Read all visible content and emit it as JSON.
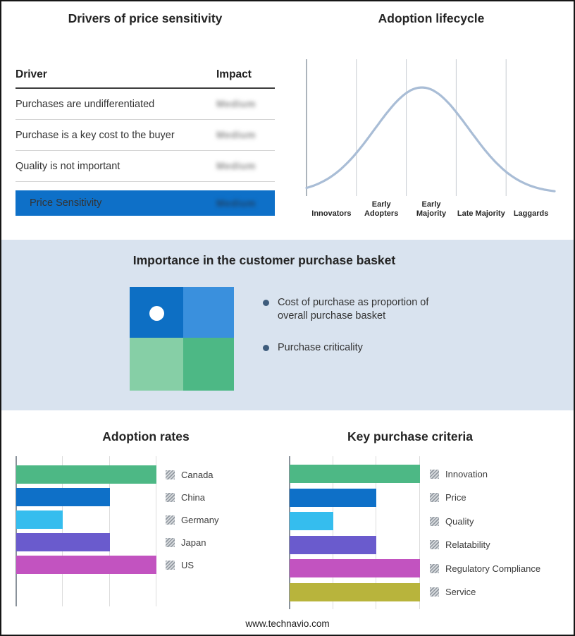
{
  "drivers_table": {
    "title": "Drivers of price sensitivity",
    "columns": [
      "Driver",
      "Impact"
    ],
    "rows": [
      {
        "driver": "Purchases are undifferentiated",
        "impact": "Medium",
        "impact_blurred": true
      },
      {
        "driver": "Purchase is a key cost to the buyer",
        "impact": "Medium",
        "impact_blurred": true
      },
      {
        "driver": "Quality is not important",
        "impact": "Medium",
        "impact_blurred": true
      }
    ],
    "highlight_row": {
      "driver": "Price Sensitivity",
      "impact": "Medium",
      "impact_blurred": true,
      "background": "#0e70c8"
    }
  },
  "purchase_basket": {
    "title": "Importance in the customer purchase basket",
    "section_background": "#d9e3ef",
    "bullet_color": "#3e5c7c",
    "bullets": [
      "Cost of purchase as proportion of overall purchase basket",
      "Purchase criticality"
    ],
    "quad_colors": {
      "top_left": "#0d6fc4",
      "top_right": "#3a90dd",
      "bottom_left": "#86cfa6",
      "bottom_right": "#4db885"
    }
  },
  "chart_data": [
    {
      "type": "line",
      "name": "adoption_lifecycle",
      "title": "Adoption lifecycle",
      "categories": [
        "Innovators",
        "Early Adopters",
        "Early Majority",
        "Late Majority",
        "Laggards"
      ],
      "curve": {
        "shape": "bell",
        "peak_position": 0.465,
        "sigma": 0.19,
        "peak_stage": "Early Majority"
      },
      "line_color": "#a9bdd6",
      "grid": "vertical-region-lines",
      "legend_position": "none"
    },
    {
      "type": "bar",
      "name": "adoption_rates",
      "title": "Adoption rates",
      "orientation": "horizontal",
      "xlim": [
        0,
        3
      ],
      "xmax": 3,
      "gridlines": [
        1,
        2,
        3
      ],
      "legend_position": "right",
      "series": [
        {
          "label": "Canada",
          "value": 3,
          "color": "#4db885"
        },
        {
          "label": "China",
          "value": 2,
          "color": "#0e70c8"
        },
        {
          "label": "Germany",
          "value": 1,
          "color": "#35bdee"
        },
        {
          "label": "Japan",
          "value": 2,
          "color": "#6a5bcd"
        },
        {
          "label": "US",
          "value": 3,
          "color": "#c253c0"
        }
      ]
    },
    {
      "type": "bar",
      "name": "key_purchase_criteria",
      "title": "Key purchase criteria",
      "orientation": "horizontal",
      "xlim": [
        0,
        3
      ],
      "xmax": 3,
      "gridlines": [
        1,
        2,
        3
      ],
      "legend_position": "right",
      "series": [
        {
          "label": "Innovation",
          "value": 3,
          "color": "#4db885"
        },
        {
          "label": "Price",
          "value": 2,
          "color": "#0e70c8"
        },
        {
          "label": "Quality",
          "value": 1,
          "color": "#35bdee"
        },
        {
          "label": "Relatability",
          "value": 2,
          "color": "#6a5bcd"
        },
        {
          "label": "Regulatory Compliance",
          "value": 3,
          "color": "#c253c0"
        },
        {
          "label": "Service",
          "value": 3,
          "color": "#b8b43c"
        }
      ]
    }
  ],
  "footer": {
    "url": "www.technavio.com"
  }
}
